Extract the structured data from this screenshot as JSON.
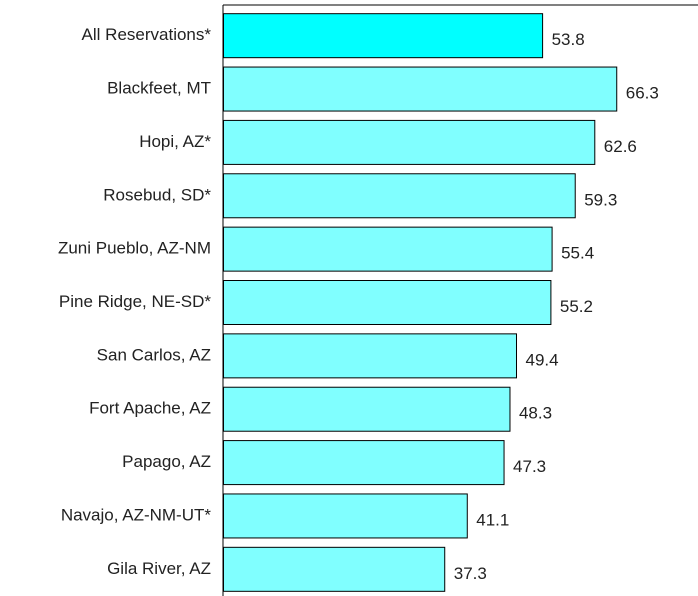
{
  "chart_data": {
    "type": "bar",
    "orientation": "horizontal",
    "categories": [
      "All Reservations*",
      "Blackfeet, MT",
      "Hopi, AZ*",
      "Rosebud, SD*",
      "Zuni Pueblo, AZ-NM",
      "Pine Ridge, NE-SD*",
      "San Carlos, AZ",
      "Fort Apache, AZ",
      "Papago, AZ",
      "Navajo, AZ-NM-UT*",
      "Gila River, AZ"
    ],
    "values": [
      53.8,
      66.3,
      62.6,
      59.3,
      55.4,
      55.2,
      49.4,
      48.3,
      47.3,
      41.1,
      37.3
    ],
    "colors": [
      "#00ffff",
      "#80ffff",
      "#80ffff",
      "#80ffff",
      "#80ffff",
      "#80ffff",
      "#80ffff",
      "#80ffff",
      "#80ffff",
      "#80ffff",
      "#80ffff"
    ],
    "xlim": [
      0,
      80
    ]
  }
}
